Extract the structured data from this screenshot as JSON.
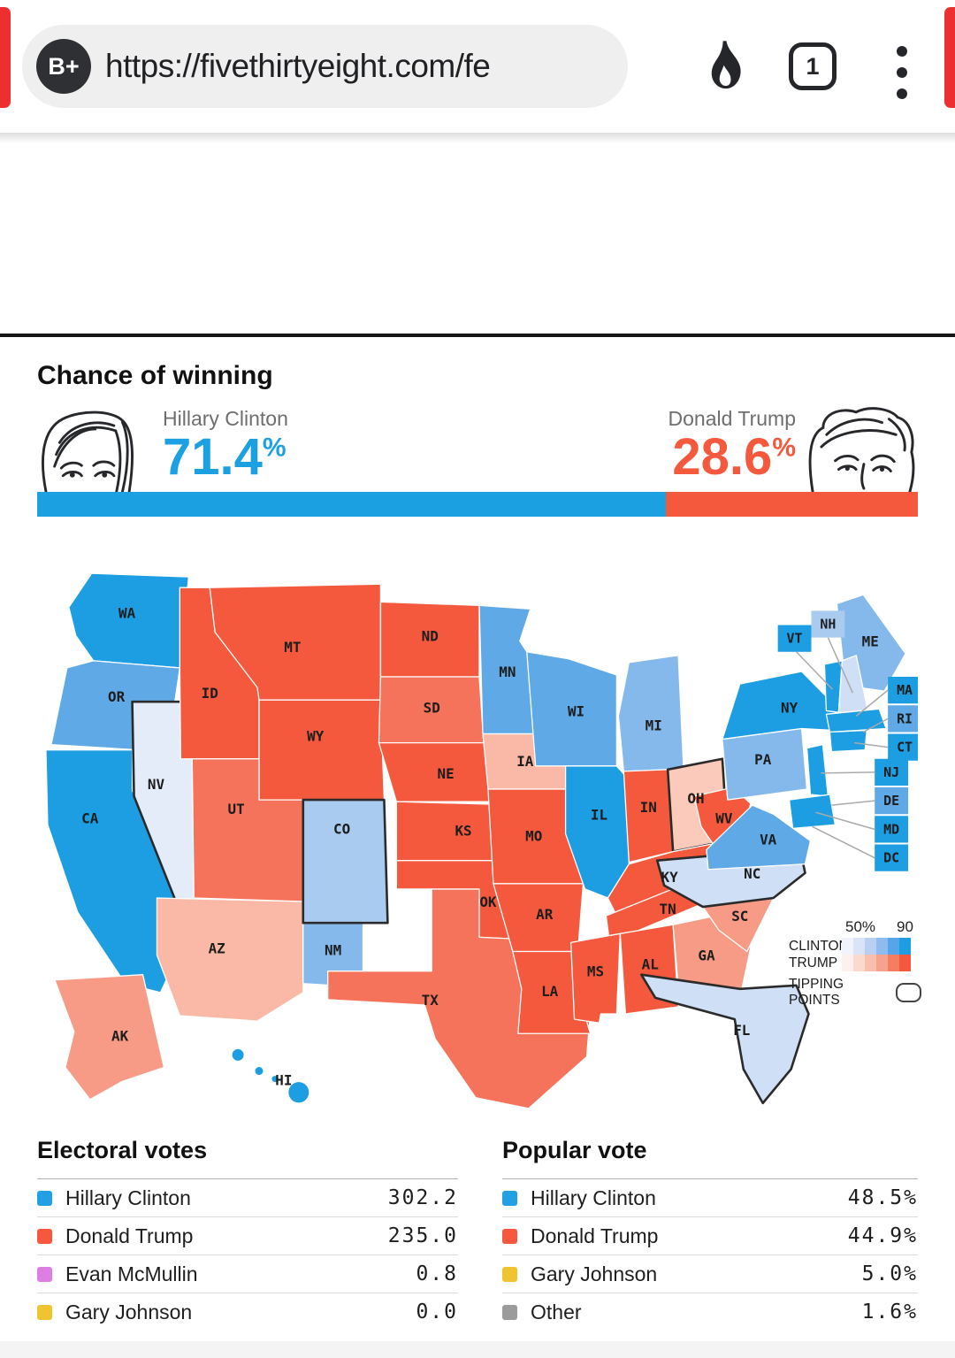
{
  "browser": {
    "badge": "B+",
    "url": "https://fivethirtyeight.com/fe",
    "tab_count": "1"
  },
  "forecast": {
    "title": "Chance of winning",
    "pct_symbol": "%",
    "clinton": {
      "name": "Hillary Clinton",
      "pct": "71.4",
      "color": "#1ba1e2"
    },
    "trump": {
      "name": "Donald Trump",
      "pct": "28.6",
      "color": "#f4583d"
    },
    "bar": {
      "clinton_share": 71.4,
      "trump_share": 28.6
    }
  },
  "map": {
    "palette": {
      "c5": "#1d9ee3",
      "c4": "#5fa9e6",
      "c3": "#85b9ec",
      "c2": "#a9cbf0",
      "c1": "#cfdff6",
      "c0": "#e4ecfa",
      "t5": "#f4593d",
      "t4": "#f5735a",
      "t3": "#f79b86",
      "t2": "#f9b9a6",
      "t1": "#fbcaba"
    },
    "tipping_outline": "#2b2b2b",
    "states": [
      {
        "id": "WA",
        "abbr": "WA",
        "cat": "c5"
      },
      {
        "id": "OR",
        "abbr": "OR",
        "cat": "c4"
      },
      {
        "id": "CA",
        "abbr": "CA",
        "cat": "c5"
      },
      {
        "id": "NV",
        "abbr": "NV",
        "cat": "c0",
        "tipping": true
      },
      {
        "id": "ID",
        "abbr": "ID",
        "cat": "t5"
      },
      {
        "id": "MT",
        "abbr": "MT",
        "cat": "t5"
      },
      {
        "id": "WY",
        "abbr": "WY",
        "cat": "t5"
      },
      {
        "id": "UT",
        "abbr": "UT",
        "cat": "t4"
      },
      {
        "id": "AZ",
        "abbr": "AZ",
        "cat": "t2"
      },
      {
        "id": "NM",
        "abbr": "NM",
        "cat": "c3"
      },
      {
        "id": "CO",
        "abbr": "CO",
        "cat": "c2",
        "tipping": true
      },
      {
        "id": "ND",
        "abbr": "ND",
        "cat": "t5"
      },
      {
        "id": "SD",
        "abbr": "SD",
        "cat": "t4"
      },
      {
        "id": "NE",
        "abbr": "NE",
        "cat": "t5"
      },
      {
        "id": "KS",
        "abbr": "KS",
        "cat": "t5"
      },
      {
        "id": "OK",
        "abbr": "OK",
        "cat": "t5"
      },
      {
        "id": "TX",
        "abbr": "TX",
        "cat": "t4"
      },
      {
        "id": "MN",
        "abbr": "MN",
        "cat": "c4"
      },
      {
        "id": "IA",
        "abbr": "IA",
        "cat": "t2"
      },
      {
        "id": "MO",
        "abbr": "MO",
        "cat": "t5"
      },
      {
        "id": "AR",
        "abbr": "AR",
        "cat": "t5"
      },
      {
        "id": "LA",
        "abbr": "LA",
        "cat": "t5"
      },
      {
        "id": "WI",
        "abbr": "WI",
        "cat": "c4"
      },
      {
        "id": "IL",
        "abbr": "IL",
        "cat": "c5"
      },
      {
        "id": "MI",
        "abbr": "MI",
        "cat": "c3"
      },
      {
        "id": "IN",
        "abbr": "IN",
        "cat": "t5"
      },
      {
        "id": "OH",
        "abbr": "OH",
        "cat": "t1",
        "tipping": true
      },
      {
        "id": "KY",
        "abbr": "KY",
        "cat": "t5"
      },
      {
        "id": "TN",
        "abbr": "TN",
        "cat": "t5"
      },
      {
        "id": "MS",
        "abbr": "MS",
        "cat": "t5"
      },
      {
        "id": "AL",
        "abbr": "AL",
        "cat": "t5"
      },
      {
        "id": "GA",
        "abbr": "GA",
        "cat": "t3"
      },
      {
        "id": "SC",
        "abbr": "SC",
        "cat": "t3"
      },
      {
        "id": "NC",
        "abbr": "NC",
        "cat": "c1",
        "tipping": true
      },
      {
        "id": "WV",
        "abbr": "WV",
        "cat": "t5"
      },
      {
        "id": "VA",
        "abbr": "VA",
        "cat": "c4"
      },
      {
        "id": "PA",
        "abbr": "PA",
        "cat": "c3"
      },
      {
        "id": "NY",
        "abbr": "NY",
        "cat": "c5"
      },
      {
        "id": "ME",
        "abbr": "ME",
        "cat": "c3"
      },
      {
        "id": "VTm",
        "abbr": "",
        "cat": "c5"
      },
      {
        "id": "NHm",
        "abbr": "",
        "cat": "c1"
      },
      {
        "id": "MAm",
        "abbr": "",
        "cat": "c5"
      },
      {
        "id": "CTm",
        "abbr": "",
        "cat": "c5"
      },
      {
        "id": "NJm",
        "abbr": "",
        "cat": "c5"
      },
      {
        "id": "MDm",
        "abbr": "",
        "cat": "c5"
      },
      {
        "id": "FL",
        "abbr": "FL",
        "cat": "c1",
        "tipping": true
      },
      {
        "id": "AK",
        "abbr": "AK",
        "cat": "t3"
      },
      {
        "id": "HI",
        "abbr": "HI",
        "cat": "c5"
      }
    ],
    "boxes": [
      {
        "id": "VT",
        "abbr": "VT",
        "cat": "c5"
      },
      {
        "id": "NH",
        "abbr": "NH",
        "cat": "c2"
      },
      {
        "id": "MA",
        "abbr": "MA",
        "cat": "c5"
      },
      {
        "id": "RI",
        "abbr": "RI",
        "cat": "c4"
      },
      {
        "id": "CT",
        "abbr": "CT",
        "cat": "c5"
      },
      {
        "id": "NJ",
        "abbr": "NJ",
        "cat": "c5"
      },
      {
        "id": "DE",
        "abbr": "DE",
        "cat": "c4"
      },
      {
        "id": "MD",
        "abbr": "MD",
        "cat": "c5"
      },
      {
        "id": "DC",
        "abbr": "DC",
        "cat": "c5"
      }
    ]
  },
  "legend": {
    "scale_left": "50%",
    "scale_right": "90",
    "rows": [
      {
        "label": "CLINTON",
        "ramp": [
          "#f0f3fb",
          "#d9e4f8",
          "#b9d0f2",
          "#8fbbee",
          "#56a5e8",
          "#1d9ee3"
        ]
      },
      {
        "label": "TRUMP",
        "ramp": [
          "#fdf1ee",
          "#fbd9cf",
          "#f9bfae",
          "#f7a28c",
          "#f57e62",
          "#f4593d"
        ]
      }
    ],
    "tipping_label": "TIPPING POINTS"
  },
  "electoral_votes": {
    "title": "Electoral votes",
    "rows": [
      {
        "label": "Hillary Clinton",
        "value": "302.2",
        "swatch": "#21a1e3"
      },
      {
        "label": "Donald Trump",
        "value": "235.0",
        "swatch": "#f6573e"
      },
      {
        "label": "Evan McMullin",
        "value": "0.8",
        "swatch": "#dc7ee4"
      },
      {
        "label": "Gary Johnson",
        "value": "0.0",
        "swatch": "#f0c431"
      }
    ]
  },
  "popular_vote": {
    "title": "Popular vote",
    "rows": [
      {
        "label": "Hillary Clinton",
        "value": "48.5%",
        "swatch": "#21a1e3"
      },
      {
        "label": "Donald Trump",
        "value": "44.9%",
        "swatch": "#f6573e"
      },
      {
        "label": "Gary Johnson",
        "value": "5.0%",
        "swatch": "#f0c431"
      },
      {
        "label": "Other",
        "value": "1.6%",
        "swatch": "#9b9b9b"
      }
    ]
  }
}
